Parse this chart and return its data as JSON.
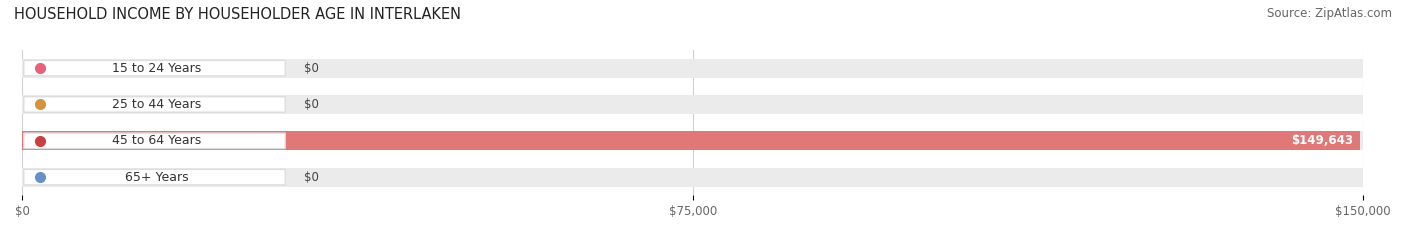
{
  "title": "HOUSEHOLD INCOME BY HOUSEHOLDER AGE IN INTERLAKEN",
  "source": "Source: ZipAtlas.com",
  "categories": [
    "15 to 24 Years",
    "25 to 44 Years",
    "45 to 64 Years",
    "65+ Years"
  ],
  "values": [
    0,
    0,
    149643,
    0
  ],
  "bar_colors": [
    "#f4a0b0",
    "#f5c98a",
    "#e07878",
    "#a8c0e0"
  ],
  "pill_dot_colors": [
    "#e8607a",
    "#d4943a",
    "#c84040",
    "#6890c8"
  ],
  "bar_bg_color": "#e8e8e8",
  "xlim": [
    0,
    150000
  ],
  "xticks": [
    0,
    75000,
    150000
  ],
  "xticklabels": [
    "$0",
    "$75,000",
    "$150,000"
  ],
  "value_labels": [
    "$0",
    "$0",
    "$149,643",
    "$0"
  ],
  "title_fontsize": 10.5,
  "source_fontsize": 8.5
}
